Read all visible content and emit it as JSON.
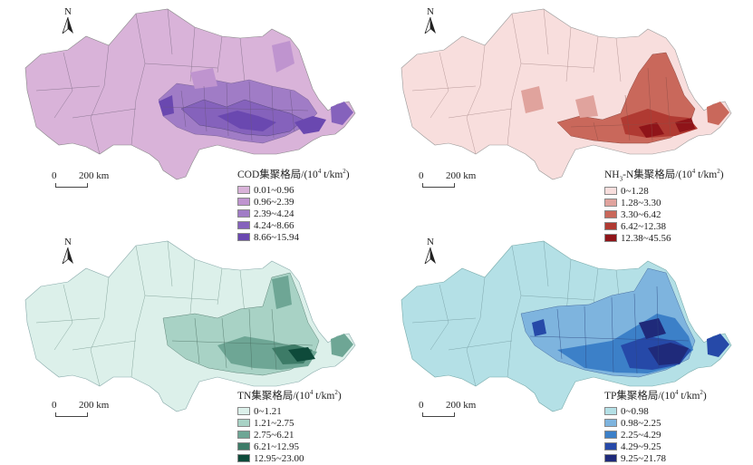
{
  "panels": [
    {
      "id": "cod",
      "north_label": "N",
      "scale_zero": "0",
      "scale_label": "200 km",
      "legend_title_prefix": "COD集聚格局/(10",
      "legend_title_sup": "4",
      "legend_title_mid": " t/km",
      "legend_title_sup2": "2",
      "legend_title_suffix": ")",
      "classes": [
        {
          "label": "0.01~0.96",
          "color": "#d9b3d9"
        },
        {
          "label": "0.96~2.39",
          "color": "#bf94cf"
        },
        {
          "label": "2.39~4.24",
          "color": "#a07cc6"
        },
        {
          "label": "4.24~8.66",
          "color": "#8562bc"
        },
        {
          "label": "8.66~15.94",
          "color": "#6a48b0"
        }
      ]
    },
    {
      "id": "nh3n",
      "north_label": "N",
      "scale_zero": "0",
      "scale_label": "200 km",
      "legend_title_prefix": "NH",
      "legend_title_sub": "3",
      "legend_title_after_sub": "-N集聚格局/(10",
      "legend_title_sup": "4",
      "legend_title_mid": " t/km",
      "legend_title_sup2": "2",
      "legend_title_suffix": ")",
      "classes": [
        {
          "label": "0~1.28",
          "color": "#f8dedd"
        },
        {
          "label": "1.28~3.30",
          "color": "#e0a39d"
        },
        {
          "label": "3.30~6.42",
          "color": "#c9685b"
        },
        {
          "label": "6.42~12.38",
          "color": "#b03a32"
        },
        {
          "label": "12.38~45.56",
          "color": "#8f1419"
        }
      ]
    },
    {
      "id": "tn",
      "north_label": "N",
      "scale_zero": "0",
      "scale_label": "200 km",
      "legend_title_prefix": "TN集聚格局/(10",
      "legend_title_sup": "4",
      "legend_title_mid": " t/km",
      "legend_title_sup2": "2",
      "legend_title_suffix": ")",
      "classes": [
        {
          "label": "0~1.21",
          "color": "#dcf0ea"
        },
        {
          "label": "1.21~2.75",
          "color": "#a8d2c5"
        },
        {
          "label": "2.75~6.21",
          "color": "#6ea695"
        },
        {
          "label": "6.21~12.95",
          "color": "#3d7b67"
        },
        {
          "label": "12.95~23.00",
          "color": "#0e4a3a"
        }
      ]
    },
    {
      "id": "tp",
      "north_label": "N",
      "scale_zero": "0",
      "scale_label": "200 km",
      "legend_title_prefix": "TP集聚格局/(10",
      "legend_title_sup": "4",
      "legend_title_mid": " t/km",
      "legend_title_sup2": "2",
      "legend_title_suffix": ")",
      "classes": [
        {
          "label": "0~0.98",
          "color": "#b4e0e6"
        },
        {
          "label": "0.98~2.25",
          "color": "#7eb4de"
        },
        {
          "label": "2.25~4.29",
          "color": "#3c80c8"
        },
        {
          "label": "4.29~9.25",
          "color": "#2649a8"
        },
        {
          "label": "9.25~21.78",
          "color": "#1f2a7a"
        }
      ]
    }
  ]
}
